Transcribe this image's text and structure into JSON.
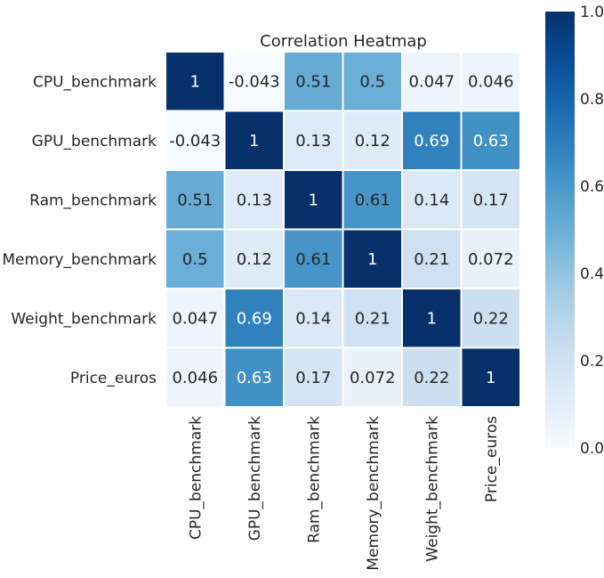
{
  "chart_data": {
    "type": "heatmap",
    "title": "Correlation Heatmap",
    "xlabel": "",
    "ylabel": "",
    "x_categories": [
      "CPU_benchmark",
      "GPU_benchmark",
      "Ram_benchmark",
      "Memory_benchmark",
      "Weight_benchmark",
      "Price_euros"
    ],
    "y_categories": [
      "CPU_benchmark",
      "GPU_benchmark",
      "Ram_benchmark",
      "Memory_benchmark",
      "Weight_benchmark",
      "Price_euros"
    ],
    "values": [
      [
        1,
        -0.043,
        0.51,
        0.5,
        0.047,
        0.046
      ],
      [
        -0.043,
        1,
        0.13,
        0.12,
        0.69,
        0.63
      ],
      [
        0.51,
        0.13,
        1,
        0.61,
        0.14,
        0.17
      ],
      [
        0.5,
        0.12,
        0.61,
        1,
        0.21,
        0.072
      ],
      [
        0.047,
        0.69,
        0.14,
        0.21,
        1,
        0.22
      ],
      [
        0.046,
        0.63,
        0.17,
        0.072,
        0.22,
        1
      ]
    ],
    "value_labels": [
      [
        "1",
        "-0.043",
        "0.51",
        "0.5",
        "0.047",
        "0.046"
      ],
      [
        "-0.043",
        "1",
        "0.13",
        "0.12",
        "0.69",
        "0.63"
      ],
      [
        "0.51",
        "0.13",
        "1",
        "0.61",
        "0.14",
        "0.17"
      ],
      [
        "0.5",
        "0.12",
        "0.61",
        "1",
        "0.21",
        "0.072"
      ],
      [
        "0.047",
        "0.69",
        "0.14",
        "0.21",
        "1",
        "0.22"
      ],
      [
        "0.046",
        "0.63",
        "0.17",
        "0.072",
        "0.22",
        "1"
      ]
    ],
    "colorscale": "Blues",
    "color_range": [
      0,
      1
    ],
    "colorbar_ticks": [
      "0.0",
      "0.2",
      "0.4",
      "0.6",
      "0.8",
      "1.0"
    ],
    "colorbar_tick_values": [
      0,
      0.2,
      0.4,
      0.6,
      0.8,
      1.0
    ],
    "grid": false,
    "legend": "right (colorbar)"
  }
}
